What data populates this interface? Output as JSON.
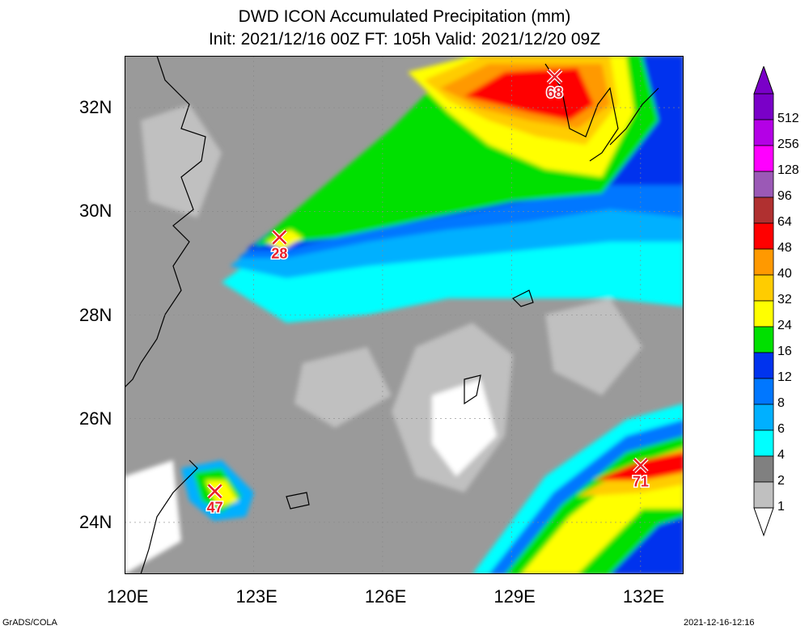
{
  "title": {
    "line1": "DWD ICON Accumulated Precipitation (mm)",
    "line2": "Init: 2021/12/16 00Z  FT: 105h  Valid: 2021/12/20 09Z"
  },
  "map": {
    "lon_range": [
      120,
      133
    ],
    "lat_range": [
      23,
      33
    ],
    "lon_ticks": [
      "120E",
      "123E",
      "126E",
      "129E",
      "132E"
    ],
    "lat_ticks": [
      "32N",
      "30N",
      "28N",
      "26N",
      "24N"
    ],
    "markers": [
      {
        "label": "68",
        "lon": 130.0,
        "lat": 32.6
      },
      {
        "label": "28",
        "lon": 123.6,
        "lat": 29.5
      },
      {
        "label": "47",
        "lon": 122.1,
        "lat": 24.6
      },
      {
        "label": "71",
        "lon": 132.0,
        "lat": 25.1
      }
    ]
  },
  "colorbar": {
    "levels": [
      "512",
      "256",
      "128",
      "96",
      "64",
      "48",
      "40",
      "32",
      "24",
      "16",
      "12",
      "8",
      "6",
      "4",
      "2",
      "1"
    ],
    "colors": [
      "#7a00c8",
      "#b400e6",
      "#ff00ff",
      "#9b59b6",
      "#b03030",
      "#ff0000",
      "#ff9900",
      "#ffcc00",
      "#ffff00",
      "#00e000",
      "#0033ee",
      "#0077ff",
      "#00b0ff",
      "#00ffff",
      "#808080",
      "#c0c0c0"
    ]
  },
  "footer": {
    "left": "GrADS/COLA",
    "right": "2021-12-16-12:16"
  }
}
